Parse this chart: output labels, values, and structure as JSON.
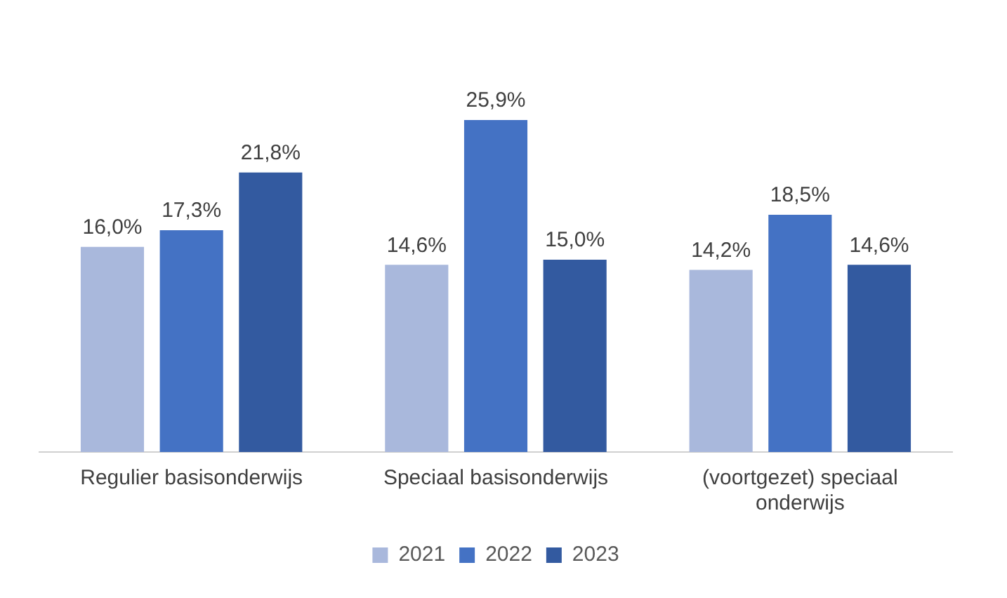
{
  "chart_data": {
    "type": "bar",
    "categories": [
      "Regulier basisonderwijs",
      "Speciaal basisonderwijs",
      "(voortgezet) speciaal onderwijs"
    ],
    "series": [
      {
        "name": "2021",
        "color": "#a9b8dc",
        "values": [
          16.0,
          14.6,
          14.2
        ],
        "value_labels": [
          "16,0%",
          "14,6%",
          "14,2%"
        ]
      },
      {
        "name": "2022",
        "color": "#4472c4",
        "values": [
          17.3,
          25.9,
          18.5
        ],
        "value_labels": [
          "17,3%",
          "25,9%",
          "18,5%"
        ]
      },
      {
        "name": "2023",
        "color": "#335aa0",
        "values": [
          21.8,
          15.0,
          14.6
        ],
        "value_labels": [
          "21,8%",
          "15,0%",
          "14,6%"
        ]
      }
    ],
    "legend": "bottom",
    "grid": false
  }
}
